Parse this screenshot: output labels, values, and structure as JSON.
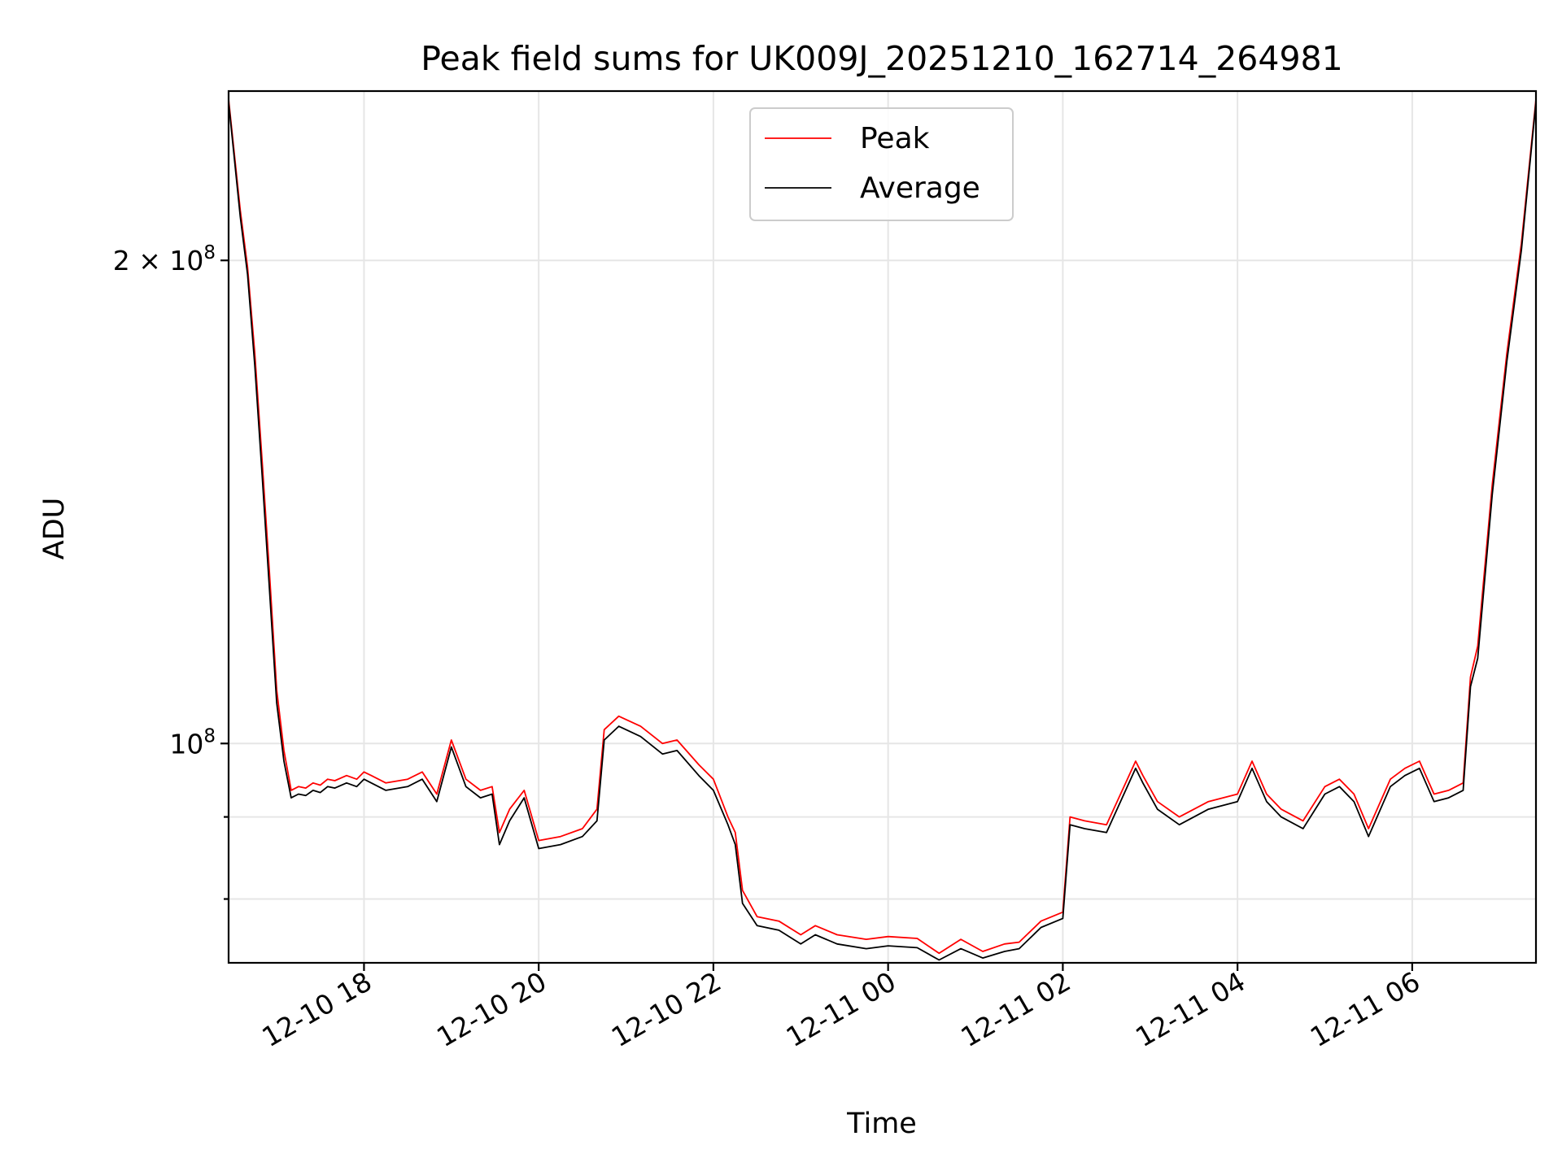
{
  "chart_data": {
    "type": "line",
    "title": "Peak field sums for UK009J_20251210_162714_264981",
    "xlabel": "Time",
    "ylabel": "ADU",
    "yscale": "log",
    "xlim": [
      "2025-12-10 16:27",
      "2025-12-11 07:25"
    ],
    "ylim": [
      73000000,
      255000000
    ],
    "grid": true,
    "legend": "upper center",
    "x_ticks": [
      {
        "t": "2025-12-10 18:00",
        "label": "12-10 18"
      },
      {
        "t": "2025-12-10 20:00",
        "label": "12-10 20"
      },
      {
        "t": "2025-12-10 22:00",
        "label": "12-10 22"
      },
      {
        "t": "2025-12-11 00:00",
        "label": "12-11 00"
      },
      {
        "t": "2025-12-11 02:00",
        "label": "12-11 02"
      },
      {
        "t": "2025-12-11 04:00",
        "label": "12-11 04"
      },
      {
        "t": "2025-12-11 06:00",
        "label": "12-11 06"
      }
    ],
    "y_ticks": [
      {
        "value": 200000000,
        "base": "2 × 10",
        "exp": "8"
      },
      {
        "value": 100000000,
        "base": "10",
        "exp": "8"
      }
    ],
    "y_minor_ticks": [
      80000000,
      90000000
    ],
    "series": [
      {
        "name": "Peak",
        "color": "#ff0000",
        "x": [
          "2025-12-10 16:27",
          "2025-12-10 16:35",
          "2025-12-10 16:40",
          "2025-12-10 16:45",
          "2025-12-10 16:50",
          "2025-12-10 16:55",
          "2025-12-10 17:00",
          "2025-12-10 17:05",
          "2025-12-10 17:10",
          "2025-12-10 17:15",
          "2025-12-10 17:20",
          "2025-12-10 17:25",
          "2025-12-10 17:30",
          "2025-12-10 17:35",
          "2025-12-10 17:40",
          "2025-12-10 17:48",
          "2025-12-10 17:55",
          "2025-12-10 18:00",
          "2025-12-10 18:05",
          "2025-12-10 18:15",
          "2025-12-10 18:30",
          "2025-12-10 18:40",
          "2025-12-10 18:50",
          "2025-12-10 19:00",
          "2025-12-10 19:10",
          "2025-12-10 19:20",
          "2025-12-10 19:28",
          "2025-12-10 19:33",
          "2025-12-10 19:40",
          "2025-12-10 19:50",
          "2025-12-10 20:00",
          "2025-12-10 20:15",
          "2025-12-10 20:30",
          "2025-12-10 20:40",
          "2025-12-10 20:45",
          "2025-12-10 20:55",
          "2025-12-10 21:10",
          "2025-12-10 21:25",
          "2025-12-10 21:35",
          "2025-12-10 21:50",
          "2025-12-10 22:00",
          "2025-12-10 22:10",
          "2025-12-10 22:15",
          "2025-12-10 22:20",
          "2025-12-10 22:30",
          "2025-12-10 22:45",
          "2025-12-10 22:55",
          "2025-12-10 23:00",
          "2025-12-10 23:10",
          "2025-12-10 23:25",
          "2025-12-10 23:45",
          "2025-12-11 00:00",
          "2025-12-11 00:20",
          "2025-12-11 00:35",
          "2025-12-11 00:50",
          "2025-12-11 01:05",
          "2025-12-11 01:20",
          "2025-12-11 01:30",
          "2025-12-11 01:45",
          "2025-12-11 02:00",
          "2025-12-11 02:05",
          "2025-12-11 02:15",
          "2025-12-11 02:30",
          "2025-12-11 02:50",
          "2025-12-11 02:55",
          "2025-12-11 03:05",
          "2025-12-11 03:20",
          "2025-12-11 03:40",
          "2025-12-11 04:00",
          "2025-12-11 04:10",
          "2025-12-11 04:20",
          "2025-12-11 04:30",
          "2025-12-11 04:45",
          "2025-12-11 05:00",
          "2025-12-11 05:10",
          "2025-12-11 05:20",
          "2025-12-11 05:30",
          "2025-12-11 05:45",
          "2025-12-11 05:55",
          "2025-12-11 06:05",
          "2025-12-11 06:15",
          "2025-12-11 06:25",
          "2025-12-11 06:35",
          "2025-12-11 06:40",
          "2025-12-11 06:45",
          "2025-12-11 06:55",
          "2025-12-11 07:05",
          "2025-12-11 07:15",
          "2025-12-11 07:25"
        ],
        "y": [
          252000000,
          215000000,
          198000000,
          175000000,
          150000000,
          128000000,
          108000000,
          99000000,
          93500000,
          94000000,
          93800000,
          94500000,
          94200000,
          95000000,
          94800000,
          95500000,
          95000000,
          96000000,
          95500000,
          94500000,
          95000000,
          96000000,
          93000000,
          100500000,
          95000000,
          93500000,
          94000000,
          88000000,
          91000000,
          93500000,
          87000000,
          87500000,
          88500000,
          91000000,
          102000000,
          104000000,
          102500000,
          100000000,
          100500000,
          97000000,
          95000000,
          90000000,
          88000000,
          81000000,
          78000000,
          77500000,
          76500000,
          76000000,
          77000000,
          76000000,
          75500000,
          75800000,
          75600000,
          74000000,
          75500000,
          74200000,
          75000000,
          75200000,
          77500000,
          78500000,
          90000000,
          89500000,
          89000000,
          97500000,
          95500000,
          92000000,
          90000000,
          92000000,
          93000000,
          97500000,
          93000000,
          91000000,
          89500000,
          94000000,
          95000000,
          93000000,
          88500000,
          95000000,
          96500000,
          97500000,
          93000000,
          93500000,
          94500000,
          110000000,
          115000000,
          145000000,
          175000000,
          205000000,
          252000000
        ]
      },
      {
        "name": "Average",
        "color": "#000000",
        "x": [
          "2025-12-10 16:27",
          "2025-12-10 16:35",
          "2025-12-10 16:40",
          "2025-12-10 16:45",
          "2025-12-10 16:50",
          "2025-12-10 16:55",
          "2025-12-10 17:00",
          "2025-12-10 17:05",
          "2025-12-10 17:10",
          "2025-12-10 17:15",
          "2025-12-10 17:20",
          "2025-12-10 17:25",
          "2025-12-10 17:30",
          "2025-12-10 17:35",
          "2025-12-10 17:40",
          "2025-12-10 17:48",
          "2025-12-10 17:55",
          "2025-12-10 18:00",
          "2025-12-10 18:05",
          "2025-12-10 18:15",
          "2025-12-10 18:30",
          "2025-12-10 18:40",
          "2025-12-10 18:50",
          "2025-12-10 19:00",
          "2025-12-10 19:10",
          "2025-12-10 19:20",
          "2025-12-10 19:28",
          "2025-12-10 19:33",
          "2025-12-10 19:40",
          "2025-12-10 19:50",
          "2025-12-10 20:00",
          "2025-12-10 20:15",
          "2025-12-10 20:30",
          "2025-12-10 20:40",
          "2025-12-10 20:45",
          "2025-12-10 20:55",
          "2025-12-10 21:10",
          "2025-12-10 21:25",
          "2025-12-10 21:35",
          "2025-12-10 21:50",
          "2025-12-10 22:00",
          "2025-12-10 22:10",
          "2025-12-10 22:15",
          "2025-12-10 22:20",
          "2025-12-10 22:30",
          "2025-12-10 22:45",
          "2025-12-10 22:55",
          "2025-12-10 23:00",
          "2025-12-10 23:10",
          "2025-12-10 23:25",
          "2025-12-10 23:45",
          "2025-12-11 00:00",
          "2025-12-11 00:20",
          "2025-12-11 00:35",
          "2025-12-11 00:50",
          "2025-12-11 01:05",
          "2025-12-11 01:20",
          "2025-12-11 01:30",
          "2025-12-11 01:45",
          "2025-12-11 02:00",
          "2025-12-11 02:05",
          "2025-12-11 02:15",
          "2025-12-11 02:30",
          "2025-12-11 02:50",
          "2025-12-11 02:55",
          "2025-12-11 03:05",
          "2025-12-11 03:20",
          "2025-12-11 03:40",
          "2025-12-11 04:00",
          "2025-12-11 04:10",
          "2025-12-11 04:20",
          "2025-12-11 04:30",
          "2025-12-11 04:45",
          "2025-12-11 05:00",
          "2025-12-11 05:10",
          "2025-12-11 05:20",
          "2025-12-11 05:30",
          "2025-12-11 05:45",
          "2025-12-11 05:55",
          "2025-12-11 06:05",
          "2025-12-11 06:15",
          "2025-12-11 06:25",
          "2025-12-11 06:35",
          "2025-12-11 06:40",
          "2025-12-11 06:45",
          "2025-12-11 06:55",
          "2025-12-11 07:05",
          "2025-12-11 07:15",
          "2025-12-11 07:25"
        ],
        "y": [
          251000000,
          213000000,
          196000000,
          172000000,
          147000000,
          125000000,
          106000000,
          97500000,
          92500000,
          93000000,
          92800000,
          93500000,
          93200000,
          94000000,
          93800000,
          94500000,
          94000000,
          95000000,
          94500000,
          93500000,
          94000000,
          95000000,
          92000000,
          99500000,
          94000000,
          92500000,
          93000000,
          86500000,
          89500000,
          92500000,
          86000000,
          86500000,
          87500000,
          89500000,
          100500000,
          102500000,
          101000000,
          98500000,
          99000000,
          95500000,
          93500000,
          89000000,
          86500000,
          79500000,
          77000000,
          76500000,
          75500000,
          75000000,
          76000000,
          75000000,
          74500000,
          74800000,
          74600000,
          73300000,
          74500000,
          73500000,
          74200000,
          74500000,
          76800000,
          77800000,
          89000000,
          88500000,
          88000000,
          96500000,
          94500000,
          91000000,
          89000000,
          91000000,
          92000000,
          96500000,
          92000000,
          90000000,
          88500000,
          93000000,
          94000000,
          92000000,
          87500000,
          94000000,
          95500000,
          96500000,
          92000000,
          92500000,
          93500000,
          108500000,
          113000000,
          143000000,
          173000000,
          203000000,
          251000000
        ]
      }
    ]
  }
}
